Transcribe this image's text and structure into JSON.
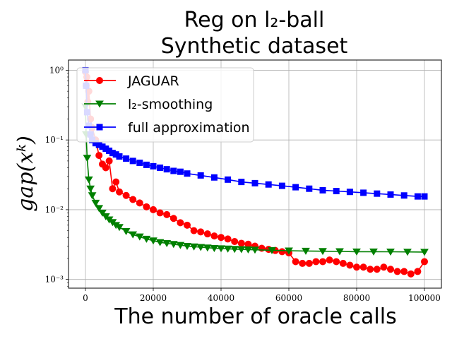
{
  "chart_data": {
    "type": "line",
    "title_line1": "Reg on l₂-ball",
    "title_line2": "Synthetic dataset",
    "xlabel": "The number of oracle calls",
    "ylabel": "gap(xᵏ)",
    "xlim": [
      -5000,
      105000
    ],
    "ylim": [
      0.00075,
      1.4
    ],
    "yscale": "log",
    "grid": true,
    "legend_position": "top-left",
    "x_ticks": [
      0,
      20000,
      40000,
      60000,
      80000,
      100000
    ],
    "x_tick_labels": [
      "0",
      "20000",
      "40000",
      "60000",
      "80000",
      "100000"
    ],
    "y_ticks": [
      0.001,
      0.01,
      0.1,
      1
    ],
    "y_tick_labels": [
      "10⁻³",
      "10⁻²",
      "10⁻¹",
      "10⁰"
    ],
    "series": [
      {
        "name": "JAGUAR",
        "color": "#ff0000",
        "marker": "circle",
        "x": [
          0,
          200,
          400,
          700,
          1000,
          1500,
          2000,
          3000,
          4000,
          5000,
          6000,
          7000,
          8000,
          9000,
          10000,
          12000,
          14000,
          16000,
          18000,
          20000,
          22000,
          24000,
          26000,
          28000,
          30000,
          32000,
          34000,
          36000,
          38000,
          40000,
          42000,
          44000,
          46000,
          48000,
          50000,
          52000,
          54000,
          56000,
          58000,
          60000,
          62000,
          64000,
          66000,
          68000,
          70000,
          72000,
          74000,
          76000,
          78000,
          80000,
          82000,
          84000,
          86000,
          88000,
          90000,
          92000,
          94000,
          96000,
          98000,
          100000
        ],
        "y": [
          0.95,
          0.6,
          0.8,
          0.35,
          0.5,
          0.2,
          0.15,
          0.1,
          0.06,
          0.045,
          0.04,
          0.05,
          0.02,
          0.025,
          0.018,
          0.016,
          0.014,
          0.0125,
          0.011,
          0.01,
          0.009,
          0.0085,
          0.0075,
          0.0065,
          0.006,
          0.005,
          0.0048,
          0.0045,
          0.0042,
          0.004,
          0.0038,
          0.0035,
          0.0033,
          0.0032,
          0.003,
          0.0028,
          0.0027,
          0.0026,
          0.0025,
          0.0024,
          0.0018,
          0.0017,
          0.0017,
          0.0018,
          0.0018,
          0.0019,
          0.0018,
          0.0017,
          0.0016,
          0.0015,
          0.0015,
          0.0014,
          0.0014,
          0.0015,
          0.0014,
          0.0013,
          0.0013,
          0.0012,
          0.0013,
          0.0018
        ]
      },
      {
        "name": "l₂-smoothing",
        "color": "#008000",
        "marker": "triangle-down",
        "x": [
          0,
          200,
          500,
          1000,
          1500,
          2000,
          3000,
          4000,
          5000,
          6000,
          7000,
          8000,
          9000,
          10000,
          12000,
          14000,
          16000,
          18000,
          20000,
          22000,
          24000,
          26000,
          28000,
          30000,
          32000,
          34000,
          36000,
          38000,
          40000,
          42000,
          44000,
          46000,
          48000,
          50000,
          55000,
          60000,
          65000,
          70000,
          75000,
          80000,
          85000,
          90000,
          95000,
          100000
        ],
        "y": [
          0.3,
          0.12,
          0.055,
          0.027,
          0.02,
          0.016,
          0.0125,
          0.0105,
          0.009,
          0.008,
          0.0072,
          0.0066,
          0.006,
          0.0056,
          0.0049,
          0.0044,
          0.0041,
          0.0038,
          0.0036,
          0.0034,
          0.0033,
          0.0032,
          0.0031,
          0.003,
          0.00295,
          0.0029,
          0.00285,
          0.0028,
          0.00278,
          0.00275,
          0.00272,
          0.0027,
          0.00268,
          0.00266,
          0.00262,
          0.00258,
          0.00256,
          0.00254,
          0.00252,
          0.0025,
          0.0025,
          0.00249,
          0.00248,
          0.00247
        ]
      },
      {
        "name": "full approximation",
        "color": "#0000ff",
        "marker": "square",
        "x": [
          0,
          200,
          500,
          1000,
          1500,
          2000,
          3000,
          4000,
          5000,
          6000,
          7000,
          8000,
          9000,
          10000,
          12000,
          14000,
          16000,
          18000,
          20000,
          22000,
          24000,
          26000,
          28000,
          30000,
          34000,
          38000,
          42000,
          46000,
          50000,
          54000,
          58000,
          62000,
          66000,
          70000,
          74000,
          78000,
          82000,
          86000,
          90000,
          94000,
          98000,
          100000
        ],
        "y": [
          1.0,
          0.6,
          0.25,
          0.16,
          0.12,
          0.1,
          0.09,
          0.085,
          0.08,
          0.075,
          0.07,
          0.065,
          0.062,
          0.058,
          0.054,
          0.05,
          0.047,
          0.044,
          0.042,
          0.04,
          0.038,
          0.036,
          0.035,
          0.033,
          0.031,
          0.029,
          0.027,
          0.025,
          0.024,
          0.023,
          0.022,
          0.021,
          0.02,
          0.019,
          0.0185,
          0.018,
          0.0175,
          0.017,
          0.0165,
          0.016,
          0.0155,
          0.0155
        ]
      }
    ]
  }
}
